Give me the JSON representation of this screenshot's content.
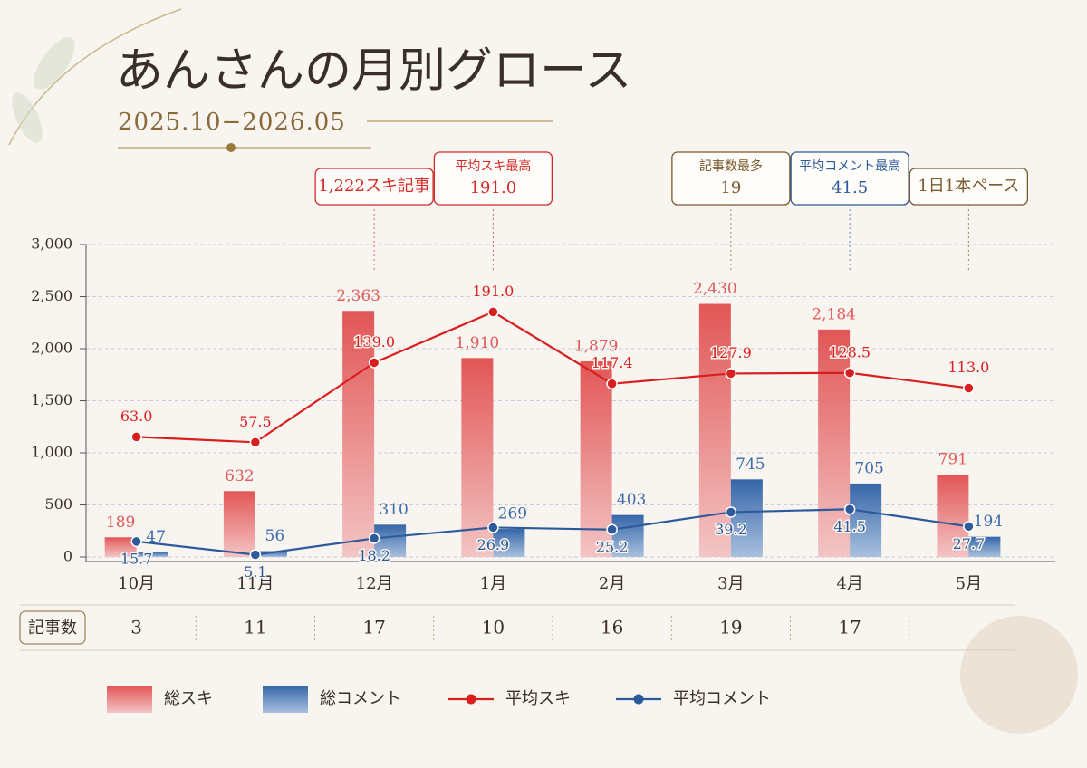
{
  "chart_data": {
    "type": "bar-line",
    "title": "あんさんの月別グロース",
    "subtitle": "2025.10−2026.05",
    "categories": [
      "10月",
      "11月",
      "12月",
      "1月",
      "2月",
      "3月",
      "4月",
      "5月"
    ],
    "ylim": [
      0,
      3000
    ],
    "yticks": [
      0,
      500,
      {
        "value": 1000,
        "label": "1,000"
      },
      {
        "value": 1500,
        "label": "1,500"
      },
      {
        "value": 2000,
        "label": "2,000"
      },
      {
        "value": 2500,
        "label": "2,500"
      },
      {
        "value": 3000,
        "label": "3,000"
      }
    ],
    "y2lim": [
      -60,
      260
    ],
    "y3lim": [
      3.3,
      253.3
    ],
    "grid": true,
    "series": [
      {
        "name": "総スキ",
        "kind": "bar",
        "color": "#e05a5a",
        "values": [
          189,
          632,
          2363,
          1910,
          1879,
          2430,
          2184,
          791
        ],
        "value_labels": [
          "189",
          "632",
          "2,363",
          "1,910",
          "1,879",
          "2,430",
          "2,184",
          "791"
        ]
      },
      {
        "name": "総コメント",
        "kind": "bar",
        "color": "#3d6cab",
        "values": [
          47,
          56,
          310,
          269,
          403,
          745,
          705,
          194
        ],
        "value_labels": [
          "47",
          "56",
          "310",
          "269",
          "403",
          "745",
          "705",
          "194"
        ]
      },
      {
        "name": "平均スキ",
        "kind": "line",
        "axis": "y2",
        "color": "#d91e1e",
        "values": [
          63.0,
          57.5,
          139.0,
          191.0,
          117.4,
          127.9,
          128.5,
          113.0
        ],
        "value_labels": [
          "63.0",
          "57.5",
          "139.0",
          "191.0",
          "117.4",
          "127.9",
          "128.5",
          "113.0"
        ]
      },
      {
        "name": "平均コメント",
        "kind": "line",
        "axis": "y3",
        "color": "#2d5a9a",
        "values": [
          15.7,
          5.1,
          18.2,
          26.9,
          25.2,
          39.2,
          41.5,
          27.7
        ],
        "value_labels": [
          "15.7",
          "5.1",
          "18.2",
          "26.9",
          "25.2",
          "39.2",
          "41.5",
          "27.7"
        ]
      }
    ],
    "article_counts": {
      "label": "記事数",
      "values": [
        3,
        11,
        17,
        10,
        16,
        19,
        17,
        null
      ]
    },
    "annotations": [
      {
        "category": "12月",
        "color": "#d42a2a",
        "lines": [
          "1,222スキ記事"
        ]
      },
      {
        "category": "1月",
        "color": "#d42a2a",
        "lines": [
          "平均スキ最高",
          "191.0"
        ]
      },
      {
        "category": "3月",
        "color": "#7a5a2e",
        "lines": [
          "記事数最多",
          "19"
        ]
      },
      {
        "category": "4月",
        "color": "#2d5a9a",
        "lines": [
          "平均コメント最高",
          "41.5"
        ]
      },
      {
        "category": "5月",
        "color": "#7a5a2e",
        "lines": [
          "1日1本ペース"
        ]
      }
    ]
  }
}
